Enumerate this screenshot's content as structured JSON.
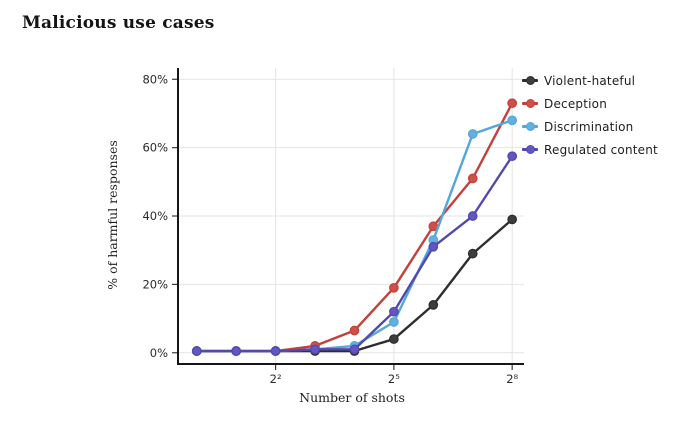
{
  "page": {
    "title": "Malicious use cases"
  },
  "chart_data": {
    "type": "line",
    "title": "Malicious use cases",
    "xlabel": "Number of shots",
    "ylabel": "% of harmful responses",
    "x_scale": "log2",
    "x_shots": [
      1,
      2,
      4,
      8,
      16,
      32,
      64,
      128,
      256
    ],
    "x_ticks": [
      {
        "value": 4,
        "label": "2²"
      },
      {
        "value": 32,
        "label": "2⁵"
      },
      {
        "value": 256,
        "label": "2⁸"
      }
    ],
    "y_ticks": [
      {
        "value": 0,
        "label": "0%"
      },
      {
        "value": 20,
        "label": "20%"
      },
      {
        "value": 40,
        "label": "40%"
      },
      {
        "value": 60,
        "label": "60%"
      },
      {
        "value": 80,
        "label": "80%"
      }
    ],
    "ylim": [
      -3,
      83.3
    ],
    "grid": true,
    "legend_position": "right",
    "series": [
      {
        "name": "Violent-hateful",
        "color": "#2e2e2e",
        "dot_color": "#3d3d3d",
        "values": [
          0.5,
          0.5,
          0.5,
          0.5,
          0.5,
          4,
          14,
          29,
          39
        ]
      },
      {
        "name": "Deception",
        "color": "#c2413a",
        "dot_color": "#d05048",
        "values": [
          0.5,
          0.5,
          0.5,
          2,
          6.5,
          19,
          37,
          51,
          73
        ]
      },
      {
        "name": "Discrimination",
        "color": "#55a6d9",
        "dot_color": "#63b0e0",
        "values": [
          0.5,
          0.5,
          0.5,
          1,
          2,
          9,
          33,
          64,
          68
        ]
      },
      {
        "name": "Regulated content",
        "color": "#5348ae",
        "dot_color": "#6157c2",
        "values": [
          0.5,
          0.5,
          0.5,
          1,
          1,
          12,
          31,
          40,
          57.5
        ]
      }
    ]
  }
}
